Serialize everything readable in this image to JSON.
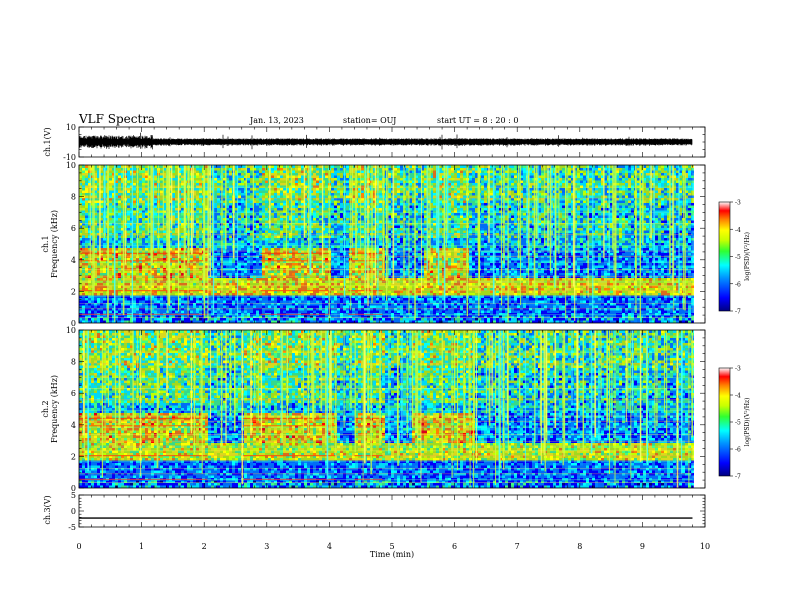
{
  "header": {
    "title": "VLF Spectra",
    "date": "Jan. 13, 2023",
    "station": "station= OUJ",
    "start": "start  UT =   8  : 20 : 0"
  },
  "chart_data": [
    {
      "id": "ch1_waveform",
      "type": "line",
      "ylabel": "ch.1(V)",
      "ylim": [
        -10,
        10
      ],
      "yticks": [
        10,
        -10
      ],
      "xlim": [
        0,
        10
      ],
      "series": [
        {
          "trace_extent_min": [
            0,
            9.8
          ]
        }
      ]
    },
    {
      "id": "ch1_spectrogram",
      "type": "heatmap",
      "ylabel": "ch.1\nFrequency (kHz)",
      "ylim": [
        0,
        10
      ],
      "yticks": [
        0,
        2,
        4,
        6,
        8,
        10
      ],
      "xlim": [
        0,
        10
      ],
      "colorbar": {
        "label": "log(PSD)(V²/Hz)",
        "range": [
          -7,
          -3
        ],
        "ticks": [
          -3,
          -4,
          -5,
          -6,
          -7
        ]
      }
    },
    {
      "id": "ch2_spectrogram",
      "type": "heatmap",
      "ylabel": "ch.2\nFrequency (kHz)",
      "ylim": [
        0,
        10
      ],
      "yticks": [
        0,
        2,
        4,
        6,
        8,
        10
      ],
      "xlim": [
        0,
        10
      ],
      "colorbar": {
        "label": "log(PSD)(V²/Hz)",
        "range": [
          -7,
          -3
        ],
        "ticks": [
          -3,
          -4,
          -5,
          -6,
          -7
        ]
      }
    },
    {
      "id": "ch3_waveform",
      "type": "line",
      "ylabel": "ch.3(V)",
      "ylim": [
        -5,
        5
      ],
      "yticks": [
        5,
        0,
        -5
      ],
      "xlim": [
        0,
        10
      ],
      "series": [
        {
          "constant_value": -2.2,
          "extent_min": [
            0,
            9.8
          ]
        }
      ],
      "xlabel": "Time (min)",
      "xticks": [
        0,
        1,
        2,
        3,
        4,
        5,
        6,
        7,
        8,
        9,
        10
      ]
    }
  ],
  "colors": {
    "colormap": [
      "#000080",
      "#0000ff",
      "#0080ff",
      "#00ffff",
      "#40ff80",
      "#c0ff00",
      "#ffff00",
      "#ff8000",
      "#ff0000",
      "#ffffff"
    ],
    "trace": "#000000"
  }
}
